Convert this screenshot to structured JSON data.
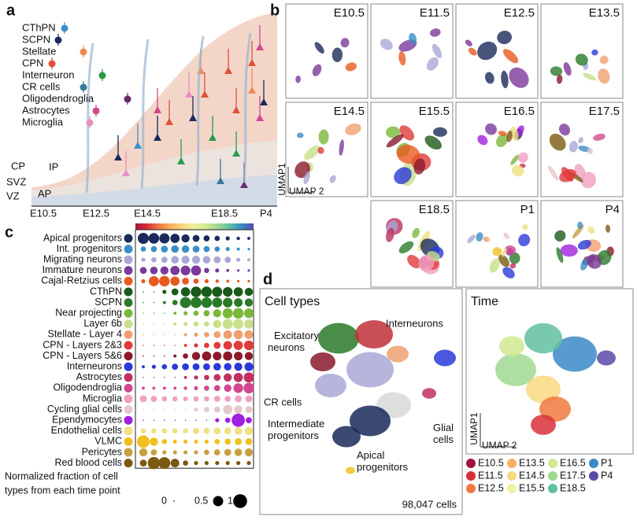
{
  "panel_labels": [
    "a",
    "b",
    "c",
    "d"
  ],
  "panel_a": {
    "cell_types": [
      {
        "label": "CThPN",
        "color": "#3a8fc8"
      },
      {
        "label": "SCPN",
        "color": "#1a2a5a"
      },
      {
        "label": "Stellate",
        "color": "#f08a50"
      },
      {
        "label": "CPN",
        "color": "#e0503a"
      },
      {
        "label": "Interneuron",
        "color": "#2a9a4a"
      },
      {
        "label": "CR cells",
        "color": "#3a7a9a"
      },
      {
        "label": "Oligodendroglia",
        "color": "#6a2a6a"
      },
      {
        "label": "Astrocytes",
        "color": "#d04890"
      },
      {
        "label": "Microglia",
        "color": "#e890c0"
      }
    ],
    "zones": [
      "CP",
      "SVZ",
      "VZ"
    ],
    "progenitors": [
      "IP",
      "AP"
    ],
    "timeline": [
      "E10.5",
      "E12.5",
      "E14.5",
      "E18.5",
      "P4"
    ]
  },
  "panel_b": {
    "titles": [
      "E10.5",
      "E11.5",
      "E12.5",
      "E13.5",
      "E14.5",
      "E15.5",
      "E16.5",
      "E17.5",
      "E18.5",
      "P1",
      "P4"
    ],
    "axis_y": "UMAP1",
    "axis_x": "UMAP 2"
  },
  "chart_data": {
    "type": "dot",
    "series": [
      {
        "name": "Apical progenitors",
        "color": "#1a2a5a",
        "values": [
          0.6,
          0.55,
          0.5,
          0.4,
          0.3,
          0.2,
          0.15,
          0.1,
          0.05,
          0.03,
          0.02
        ]
      },
      {
        "name": "Int. progenitors",
        "color": "#3a8fc8",
        "values": [
          0.1,
          0.15,
          0.2,
          0.25,
          0.25,
          0.2,
          0.15,
          0.1,
          0.05,
          0.02,
          0.01
        ]
      },
      {
        "name": "Migrating neurons",
        "color": "#a9a8d6",
        "values": [
          0.05,
          0.1,
          0.15,
          0.25,
          0.3,
          0.3,
          0.25,
          0.2,
          0.15,
          0.05,
          0.02
        ]
      },
      {
        "name": "Immature neurons",
        "color": "#7a3a9a",
        "values": [
          0.2,
          0.25,
          0.3,
          0.4,
          0.45,
          0.5,
          0.1,
          0.05,
          0.02,
          0.01,
          0.01
        ]
      },
      {
        "name": "Cajal-Retzius cells",
        "color": "#e85a20",
        "values": [
          0.05,
          0.5,
          0.55,
          0.4,
          0.2,
          0.1,
          0.05,
          0.03,
          0.02,
          0.01,
          0.01
        ]
      },
      {
        "name": "CThPN",
        "color": "#1a5a1a",
        "values": [
          0,
          0,
          0.05,
          0.2,
          0.4,
          0.55,
          0.55,
          0.5,
          0.45,
          0.4,
          0.3
        ]
      },
      {
        "name": "SCPN",
        "color": "#2a7a2a",
        "values": [
          0,
          0,
          0.02,
          0.1,
          0.6,
          0.6,
          0.55,
          0.5,
          0.45,
          0.35,
          0.3
        ]
      },
      {
        "name": "Near projecting",
        "color": "#7ab83a",
        "values": [
          0,
          0,
          0,
          0.02,
          0.05,
          0.1,
          0.15,
          0.3,
          0.5,
          0.55,
          0.45
        ]
      },
      {
        "name": "Layer 6b",
        "color": "#c8e08a",
        "values": [
          0,
          0,
          0,
          0.02,
          0.05,
          0.1,
          0.1,
          0.3,
          0.5,
          0.5,
          0.4
        ]
      },
      {
        "name": "Stellate - Layer 4",
        "color": "#f0a070",
        "values": [
          0,
          0,
          0,
          0,
          0.02,
          0.05,
          0.1,
          0.2,
          0.35,
          0.4,
          0.35
        ]
      },
      {
        "name": "CPN - Layers 2&3",
        "color": "#e03a3a",
        "values": [
          0,
          0,
          0,
          0,
          0.02,
          0.05,
          0.1,
          0.2,
          0.35,
          0.4,
          0.45
        ]
      },
      {
        "name": "CPN - Layers 5&6",
        "color": "#8a1a2a",
        "values": [
          0,
          0,
          0,
          0.02,
          0.1,
          0.3,
          0.4,
          0.35,
          0.4,
          0.35,
          0.3
        ]
      },
      {
        "name": "Interneurons",
        "color": "#2a3ad8",
        "values": [
          0.02,
          0.05,
          0.1,
          0.15,
          0.2,
          0.2,
          0.2,
          0.25,
          0.25,
          0.3,
          0.35
        ]
      },
      {
        "name": "Astrocytes",
        "color": "#c03060",
        "values": [
          0,
          0,
          0,
          0,
          0.02,
          0.05,
          0.1,
          0.2,
          0.3,
          0.4,
          0.5
        ]
      },
      {
        "name": "Oligodendroglia",
        "color": "#d04890",
        "values": [
          0.02,
          0.02,
          0.02,
          0.02,
          0.03,
          0.05,
          0.1,
          0.15,
          0.25,
          0.45,
          0.55
        ]
      },
      {
        "name": "Microglia",
        "color": "#f0a0c0",
        "values": [
          0.2,
          0.15,
          0.1,
          0.1,
          0.08,
          0.1,
          0.1,
          0.15,
          0.15,
          0.2,
          0.2
        ]
      },
      {
        "name": "Cycling glial cells",
        "color": "#e6c8c8",
        "values": [
          0,
          0,
          0,
          0,
          0,
          0.05,
          0.1,
          0.15,
          0.4,
          0.3,
          0.2
        ]
      },
      {
        "name": "Ependymocytes",
        "color": "#a020e0",
        "values": [
          0,
          0,
          0,
          0,
          0,
          0,
          0,
          0.05,
          0.1,
          0.9,
          0.15
        ]
      },
      {
        "name": "Endothelial cells",
        "color": "#f0e080",
        "values": [
          0.1,
          0.1,
          0.1,
          0.1,
          0.1,
          0.15,
          0.15,
          0.2,
          0.2,
          0.25,
          0.3
        ]
      },
      {
        "name": "VLMC",
        "color": "#f0c020",
        "values": [
          0.8,
          0.3,
          0.1,
          0.05,
          0.05,
          0.05,
          0.05,
          0.1,
          0.15,
          0.2,
          0.2
        ]
      },
      {
        "name": "Pericytes",
        "color": "#c8a040",
        "values": [
          0.3,
          0.15,
          0.05,
          0.05,
          0.05,
          0.05,
          0.1,
          0.15,
          0.2,
          0.25,
          0.3
        ]
      },
      {
        "name": "Red blood cells",
        "color": "#7a5a10",
        "values": [
          0.2,
          0.75,
          0.7,
          0.35,
          0.1,
          0.05,
          0.05,
          0.05,
          0.05,
          0.05,
          0.05
        ]
      }
    ],
    "size_title": [
      "Normalized fraction of cell",
      "types from each time point"
    ],
    "size_legend": [
      0,
      0.5,
      1
    ]
  },
  "panel_d": {
    "cell_types_title": "Cell types",
    "cell_type_labels": [
      "Excitatory neurons",
      "Interneurons",
      "CR cells",
      "Intermediate progenitors",
      "Glial cells",
      "Apical progenitors"
    ],
    "cell_count": "98,047 cells",
    "time_title": "Time",
    "axis_y": "UMAP1",
    "axis_x": "UMAP 2",
    "time_legend": [
      {
        "label": "E10.5",
        "color": "#a0143c"
      },
      {
        "label": "E11.5",
        "color": "#d8303a"
      },
      {
        "label": "E12.5",
        "color": "#f07a40"
      },
      {
        "label": "E13.5",
        "color": "#f8b060"
      },
      {
        "label": "E14.5",
        "color": "#f8d880"
      },
      {
        "label": "E15.5",
        "color": "#f0f0a0"
      },
      {
        "label": "E16.5",
        "color": "#d0e890"
      },
      {
        "label": "E17.5",
        "color": "#a0d890"
      },
      {
        "label": "E18.5",
        "color": "#60c0a0"
      },
      {
        "label": "P1",
        "color": "#3a8ac8"
      },
      {
        "label": "P4",
        "color": "#5a4aa8"
      }
    ]
  }
}
